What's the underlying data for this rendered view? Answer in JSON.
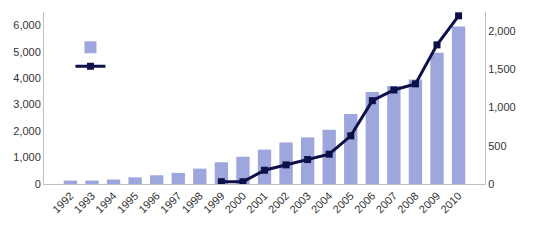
{
  "chart_data": {
    "type": "bar",
    "categories": [
      "1992",
      "1993",
      "1994",
      "1995",
      "1996",
      "1997",
      "1998",
      "1999",
      "2000",
      "2001",
      "2002",
      "2003",
      "2004",
      "2005",
      "2006",
      "2007",
      "2008",
      "2009",
      "2010"
    ],
    "series": [
      {
        "type": "bar",
        "color": "#9ea6de",
        "values": [
          130,
          130,
          170,
          250,
          330,
          420,
          580,
          820,
          1030,
          1300,
          1570,
          1760,
          2050,
          2650,
          3480,
          3700,
          3950,
          4960,
          5950
        ]
      },
      {
        "type": "line",
        "axis": "y2",
        "color": "#0e1048",
        "marker": "square",
        "line_style": "solid",
        "values": [
          null,
          null,
          null,
          null,
          null,
          null,
          null,
          30,
          30,
          180,
          250,
          320,
          390,
          630,
          1090,
          1230,
          1310,
          1820,
          2200
        ]
      }
    ],
    "ylim": [
      0,
      6500
    ],
    "yticks": [
      0,
      {
        "value": 1000,
        "label": "1,000"
      },
      {
        "value": 2000,
        "label": "2,000"
      },
      {
        "value": 3000,
        "label": "3,000"
      },
      {
        "value": 4000,
        "label": "4,000"
      },
      {
        "value": 5000,
        "label": "5,000"
      },
      {
        "value": 6000,
        "label": "6,000"
      }
    ],
    "y2lim": [
      0,
      2250
    ],
    "y2ticks": [
      0,
      500,
      {
        "value": 1000,
        "label": "1,000"
      },
      {
        "value": 1500,
        "label": "1,500"
      },
      {
        "value": 2000,
        "label": "2,000"
      }
    ],
    "grid": false,
    "legend": "upper left"
  }
}
